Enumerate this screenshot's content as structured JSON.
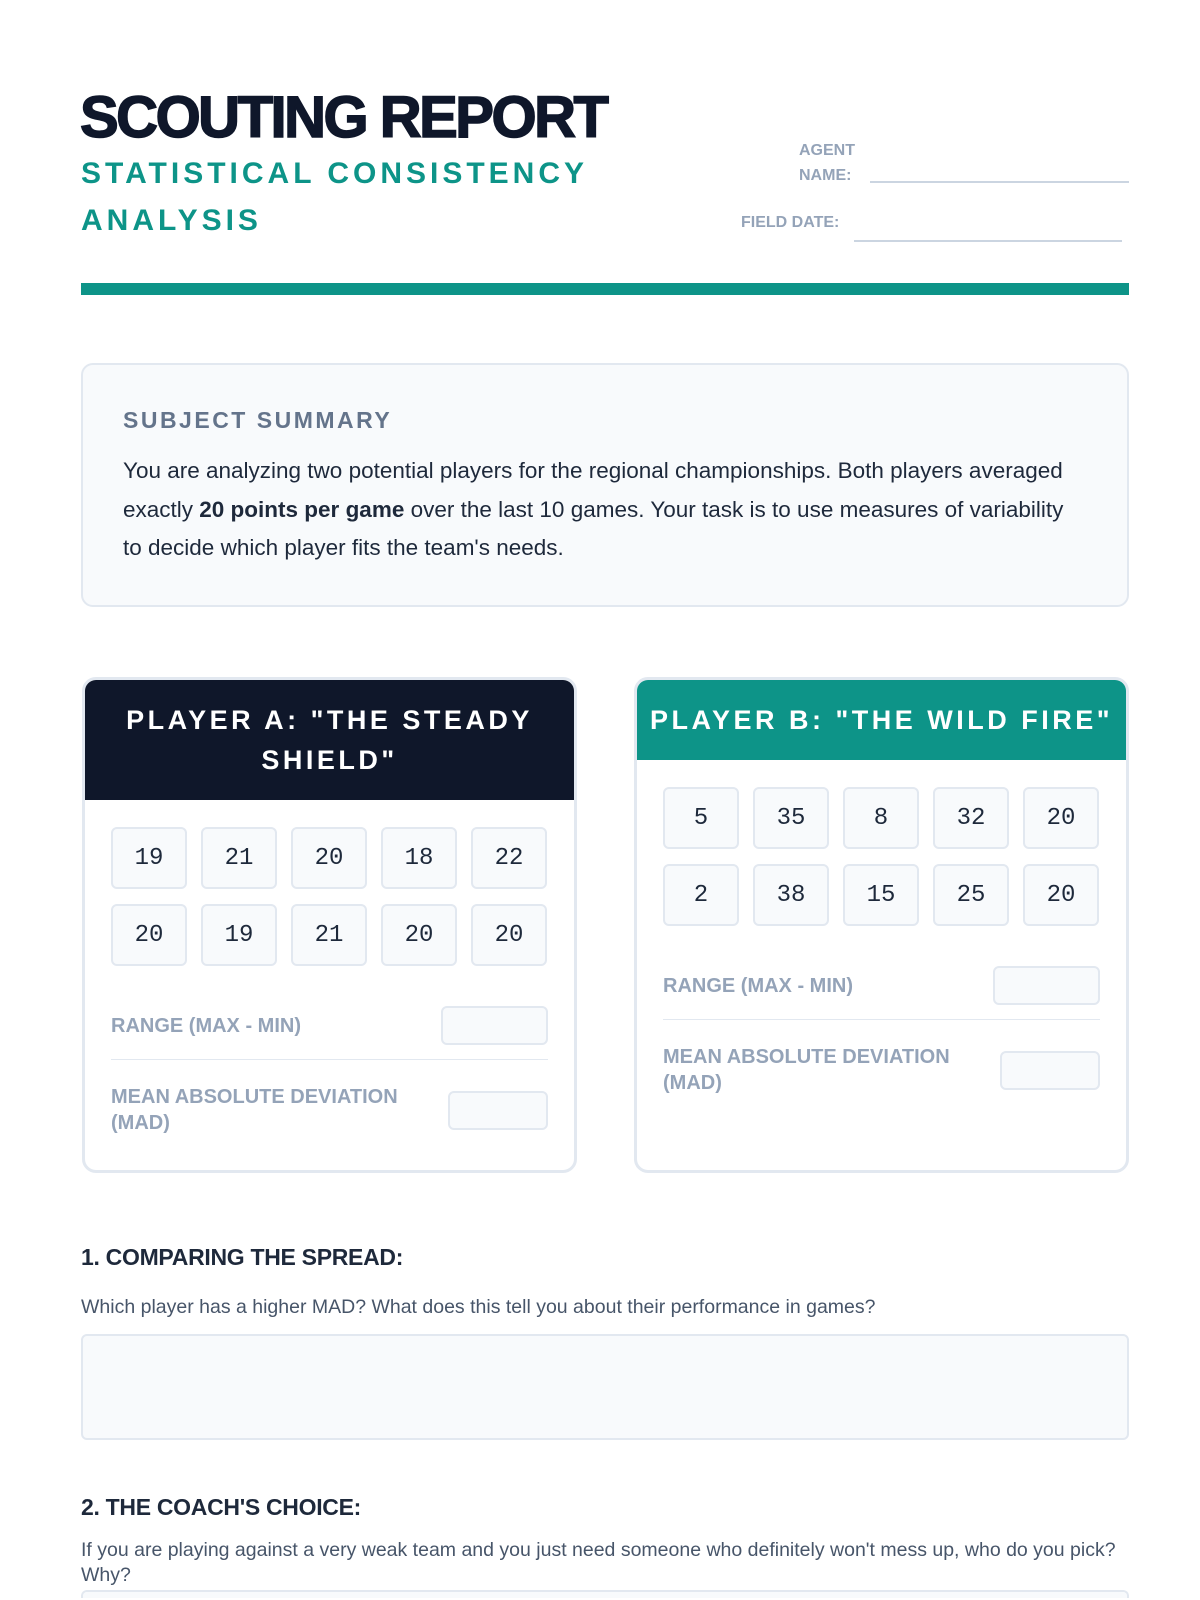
{
  "header": {
    "title": "SCOUTING REPORT",
    "subtitle": "STATISTICAL CONSISTENCY ANALYSIS",
    "agent_name_label_1": "AGENT",
    "agent_name_label_2": "NAME:",
    "field_date_label": "FIELD DATE:"
  },
  "summary": {
    "heading": "SUBJECT SUMMARY",
    "text_before": "You are analyzing two potential players for the regional championships. Both players averaged exactly ",
    "text_bold": "20 points per game",
    "text_after": " over the last 10 games. Your task is to use measures of variability to decide which player fits the team's needs."
  },
  "players": [
    {
      "title": "PLAYER A: \"THE STEADY SHIELD\"",
      "scores": [
        "19",
        "21",
        "20",
        "18",
        "22",
        "20",
        "19",
        "21",
        "20",
        "20"
      ],
      "range_label": "RANGE (MAX - MIN)",
      "mad_label": "MEAN ABSOLUTE DEVIATION (MAD)"
    },
    {
      "title": "PLAYER B: \"THE WILD FIRE\"",
      "scores": [
        "5",
        "35",
        "8",
        "32",
        "20",
        "2",
        "38",
        "15",
        "25",
        "20"
      ],
      "range_label": "RANGE (MAX - MIN)",
      "mad_label": "MEAN ABSOLUTE DEVIATION (MAD)"
    }
  ],
  "questions": [
    {
      "heading": "1. COMPARING THE SPREAD:",
      "prompt": "Which player has a higher MAD? What does this tell you about their performance in games?"
    },
    {
      "heading": "2. THE COACH'S CHOICE:",
      "prompt": "If you are playing against a very weak team and you just need someone who definitely won't mess up, who do you pick? Why?"
    }
  ],
  "colors": {
    "accent": "#0d9488",
    "dark": "#0f172a",
    "muted": "#94a3b8"
  }
}
